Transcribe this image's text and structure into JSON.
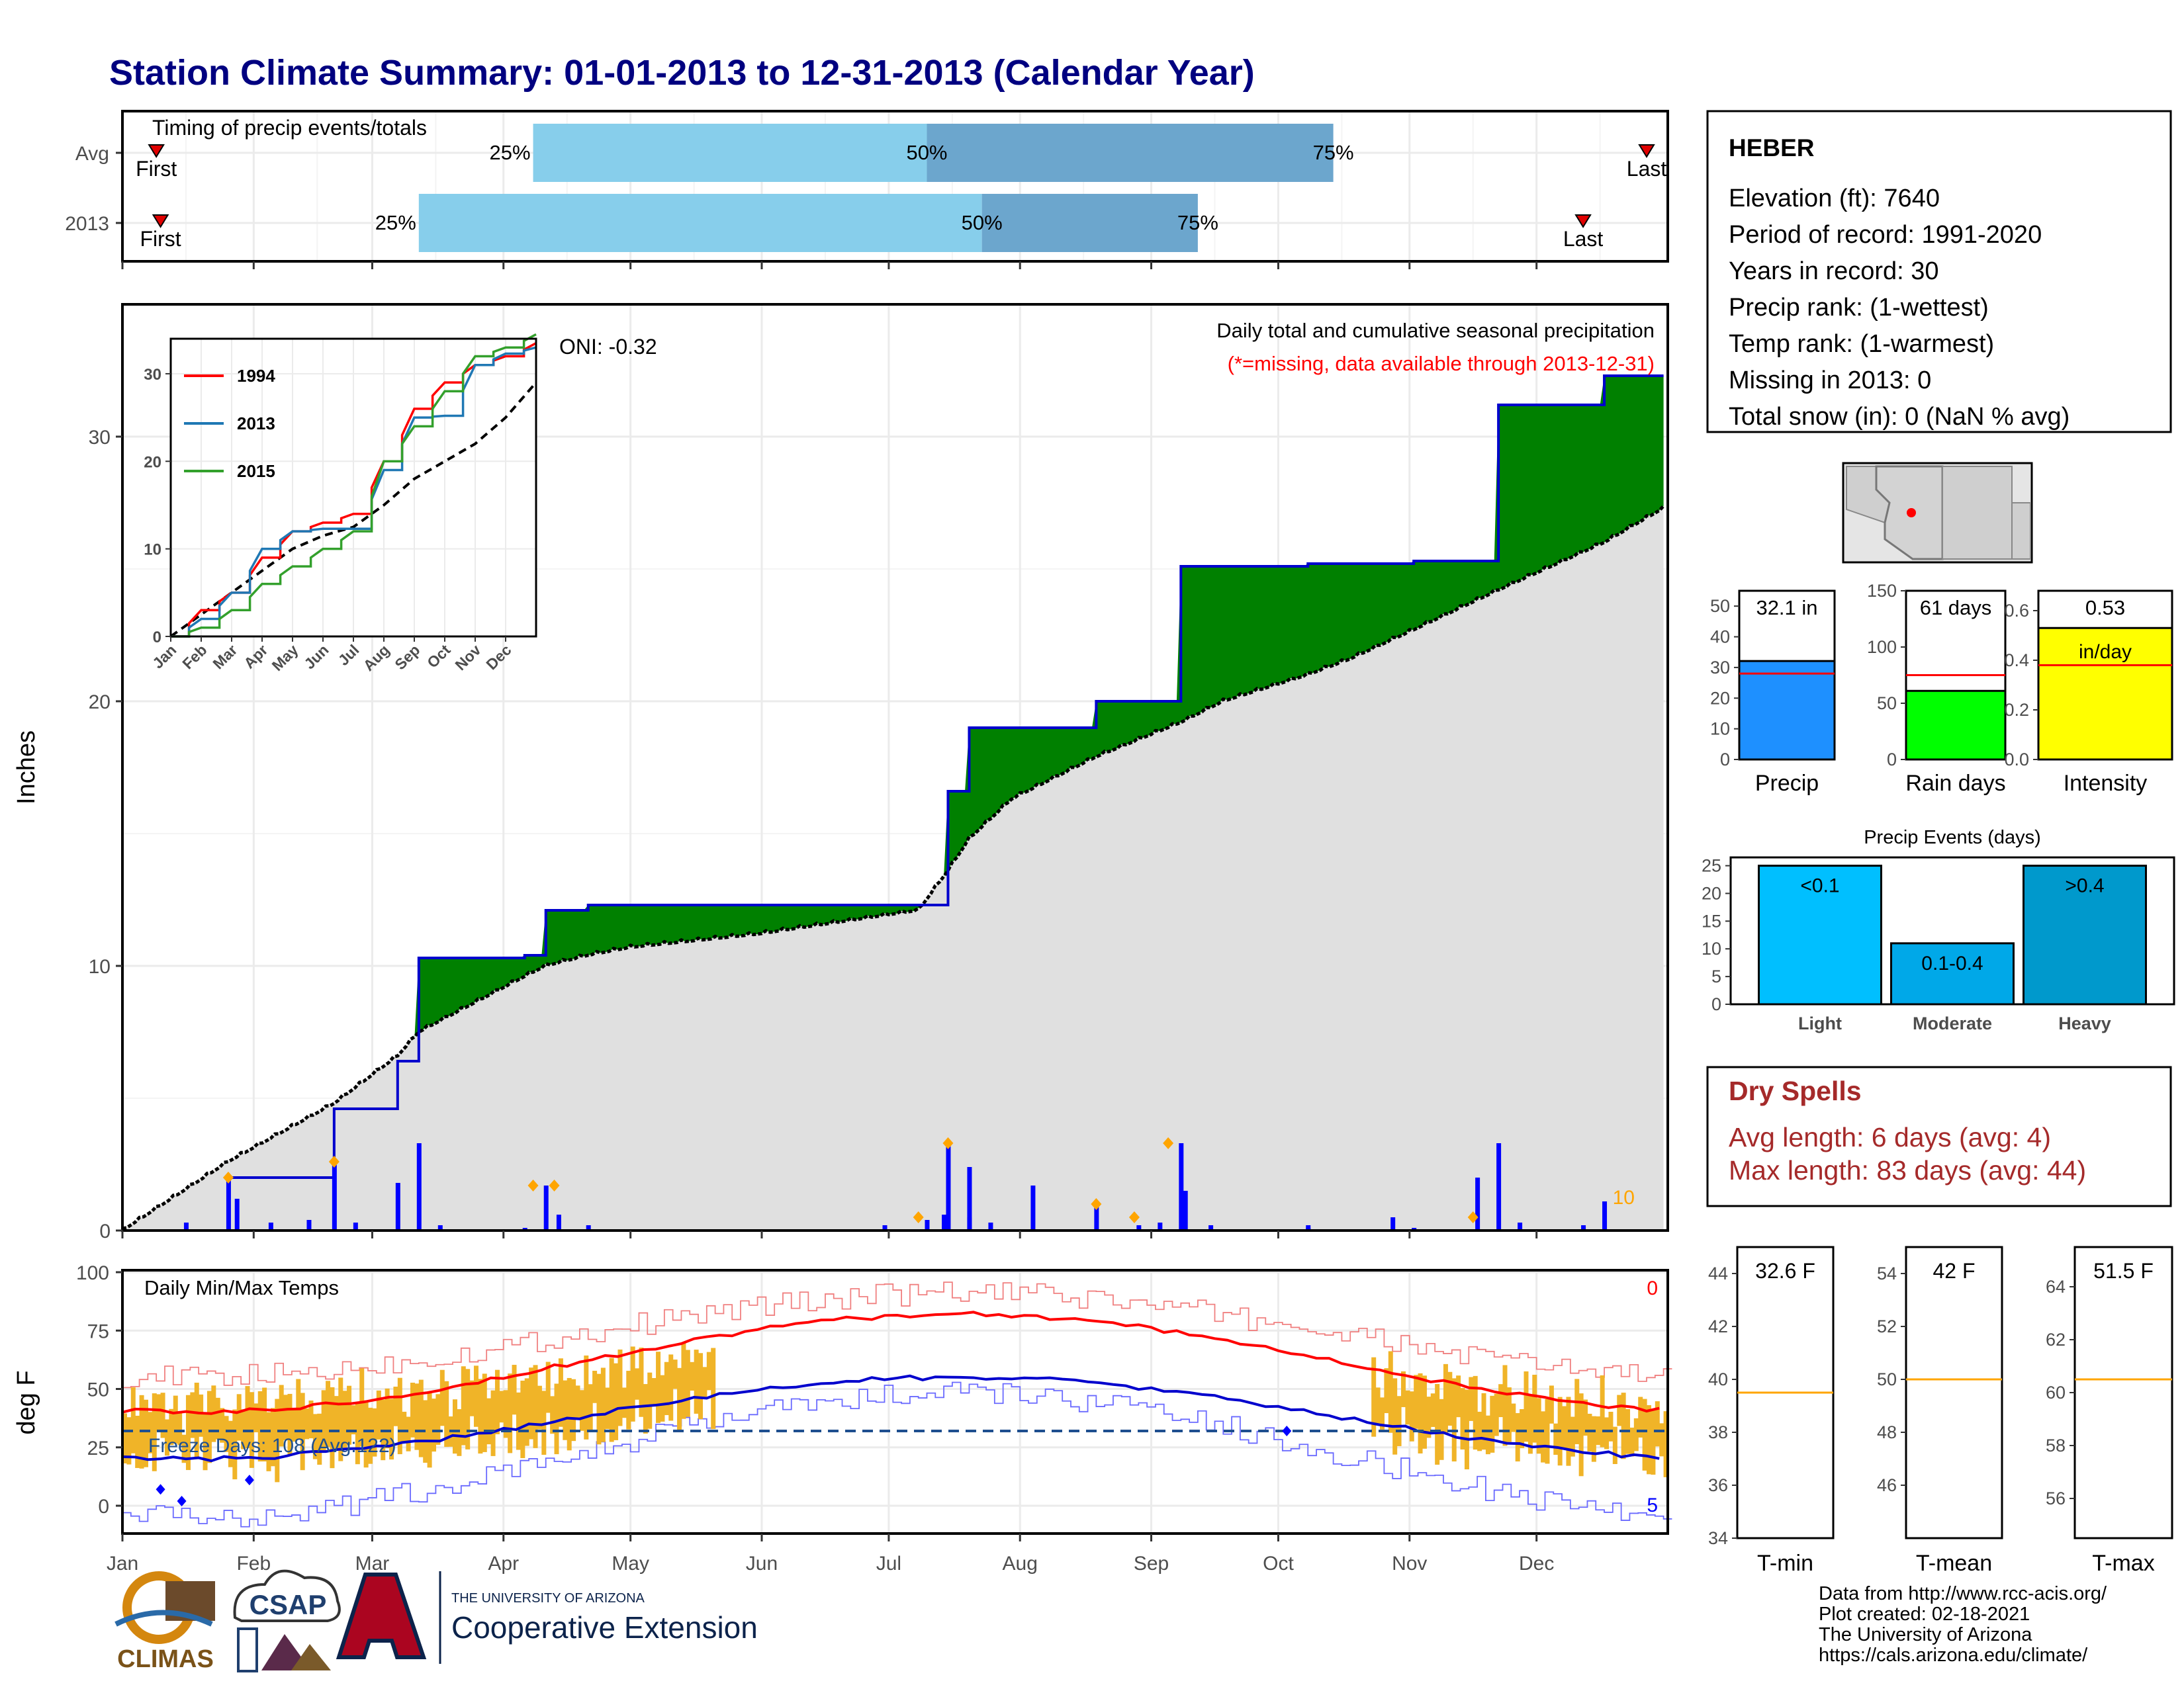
{
  "title": "Station Climate Summary: 01-01-2013 to 12-31-2013 (Calendar Year)",
  "colors": {
    "title": "#000080",
    "precip_fill": "#008000",
    "cum_line": "#0000cd",
    "normal_fill": "#e0e0e0",
    "deficit_fill": "#8b5a00",
    "daily_bar": "#0000ff",
    "marker": "#ffa500",
    "max_normal": "#ff0000",
    "min_normal": "#0000cd",
    "temp_bar": "#f0b428"
  },
  "timing": {
    "label": "Timing of precip events/totals",
    "rows": [
      {
        "name": "Avg",
        "first_label": "First",
        "last_label": "Last",
        "first_day": 8,
        "last_day": 360,
        "q25": {
          "label": "25%",
          "day": 97
        },
        "q50": {
          "label": "50%",
          "day": 190
        },
        "q75": {
          "label": "75%",
          "day": 286
        }
      },
      {
        "name": "2013",
        "first_label": "First",
        "last_label": "Last",
        "first_day": 9,
        "last_day": 345,
        "q25": {
          "label": "25%",
          "day": 70
        },
        "q50": {
          "label": "50%",
          "day": 203
        },
        "q75": {
          "label": "75%",
          "day": 254
        }
      }
    ]
  },
  "precip_panel": {
    "ylabel": "Inches",
    "yticks": [
      "0",
      "10",
      "20",
      "30"
    ],
    "ymax": 35,
    "title": "Daily total and cumulative seasonal precipitation",
    "subtitle": "(*=missing, data available through 2013-12-31)",
    "oni": "ONI: -0.32",
    "corner_label": "10",
    "marker_days": [
      25,
      50,
      97,
      102,
      188,
      195,
      230,
      239,
      247,
      319
    ]
  },
  "inset": {
    "yticks": [
      "0",
      "10",
      "20",
      "30"
    ],
    "months": [
      "Jan",
      "Feb",
      "Mar",
      "Apr",
      "May",
      "Jun",
      "Jul",
      "Aug",
      "Sep",
      "Oct",
      "Nov",
      "Dec"
    ],
    "legend": [
      {
        "name": "1994",
        "color": "#ff0000"
      },
      {
        "name": "2013",
        "color": "#1f78b4"
      },
      {
        "name": "2015",
        "color": "#33a02c"
      }
    ]
  },
  "temp_panel": {
    "ylabel": "deg F",
    "yticks": [
      "0",
      "25",
      "50",
      "75",
      "100"
    ],
    "title": "Daily Min/Max Temps",
    "freeze_label": "Freeze Days: 108 (Avg:122)",
    "freeze_line": 32,
    "top_right": "0",
    "bottom_right": "5"
  },
  "months": [
    "Jan",
    "Feb",
    "Mar",
    "Apr",
    "May",
    "Jun",
    "Jul",
    "Aug",
    "Sep",
    "Oct",
    "Nov",
    "Dec"
  ],
  "station": {
    "name": "HEBER",
    "lines": [
      "Elevation (ft): 7640",
      "Period of record: 1991-2020",
      "Years in record: 30",
      "Precip rank:  (1-wettest)",
      "Temp rank:  (1-warmest)",
      "Missing in 2013: 0",
      "Total snow (in): 0 (NaN % avg)"
    ]
  },
  "mini_bars": [
    {
      "label": "Precip",
      "value_label": "32.1 in",
      "value": 32.1,
      "avg": 28,
      "ymax": 55,
      "yticks": [
        "0",
        "10",
        "20",
        "30",
        "40",
        "50"
      ],
      "color": "#1e90ff"
    },
    {
      "label": "Rain days",
      "value_label": "61 days",
      "value": 61,
      "avg": 75,
      "ymax": 150,
      "yticks": [
        "0",
        "50",
        "100",
        "150"
      ],
      "color": "#00ff00"
    },
    {
      "label": "Intensity",
      "value_label": "0.53",
      "value_label2": "in/day",
      "value": 0.53,
      "avg": 0.38,
      "ymax": 0.68,
      "yticks": [
        "0.0",
        "0.2",
        "0.4",
        "0.6"
      ],
      "color": "#ffff00"
    }
  ],
  "events": {
    "title": "Precip Events (days)",
    "yticks": [
      "0",
      "5",
      "10",
      "15",
      "20",
      "25"
    ],
    "categories": [
      "Light",
      "Moderate",
      "Heavy"
    ],
    "bar_labels": [
      "<0.1",
      "0.1-0.4",
      ">0.4"
    ],
    "values": [
      25,
      11,
      25
    ],
    "colors": [
      "#00bfff",
      "#00a8e8",
      "#0099cc"
    ]
  },
  "dry_spells": {
    "title": "Dry Spells",
    "avg": "Avg length: 6 days (avg: 4)",
    "max": "Max length: 83 days (avg: 44)"
  },
  "temp_bars": [
    {
      "label": "T-min",
      "value_label": "32.6 F",
      "avg": 39.5,
      "ymin": 34,
      "ymax": 45,
      "yticks": [
        "34",
        "36",
        "38",
        "40",
        "42",
        "44"
      ]
    },
    {
      "label": "T-mean",
      "value_label": "42 F",
      "avg": 50,
      "ymin": 44,
      "ymax": 55,
      "yticks": [
        "46",
        "48",
        "50",
        "52",
        "54"
      ]
    },
    {
      "label": "T-max",
      "value_label": "51.5 F",
      "avg": 60.5,
      "ymin": 54.5,
      "ymax": 65.5,
      "yticks": [
        "56",
        "58",
        "60",
        "62",
        "64"
      ]
    }
  ],
  "footer": {
    "lines": [
      "Data from http://www.rcc-acis.org/",
      "Plot created: 02-18-2021",
      "The University of Arizona",
      "https://cals.arizona.edu/climate/"
    ],
    "logo1": "CLIMAS",
    "logo2": "CSAP",
    "logo3_small": "THE UNIVERSITY OF ARIZONA",
    "logo3_big": "Cooperative Extension"
  },
  "chart_data": [
    {
      "type": "area",
      "title": "Daily total and cumulative seasonal precipitation",
      "ylabel": "Inches",
      "ylim": [
        0,
        35
      ],
      "x": [
        0,
        25,
        50,
        65,
        70,
        95,
        100,
        110,
        120,
        150,
        188,
        195,
        200,
        210,
        230,
        250,
        260,
        280,
        290,
        305,
        325,
        350,
        364
      ],
      "cumulative_2013": [
        0,
        2.0,
        4.6,
        6.4,
        10.3,
        10.4,
        12.1,
        12.3,
        12.3,
        12.3,
        12.3,
        16.6,
        19.0,
        19.0,
        20.0,
        25.1,
        25.1,
        25.2,
        25.2,
        25.3,
        31.2,
        32.3,
        32.3
      ],
      "normal": [
        0,
        2.6,
        4.8,
        6.6,
        7.5,
        9.6,
        10.0,
        10.4,
        10.7,
        11.2,
        12.1,
        13.6,
        14.8,
        16.3,
        17.9,
        19.2,
        20.0,
        21.0,
        21.6,
        22.7,
        24.2,
        26.0,
        27.3
      ]
    },
    {
      "type": "bar",
      "title": "Precip Events (days)",
      "categories": [
        "Light",
        "Moderate",
        "Heavy"
      ],
      "values": [
        25,
        11,
        25
      ]
    }
  ]
}
